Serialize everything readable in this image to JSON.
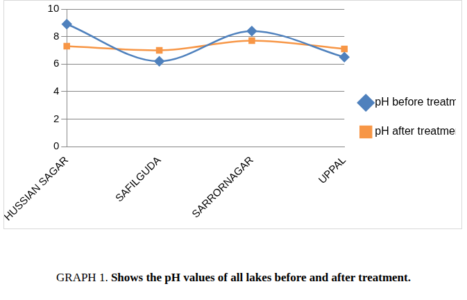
{
  "chart_data": {
    "type": "line",
    "title": "GRAPH 1. Shows the pH values of all lakes before and after treatment.",
    "categories": [
      "HUSSIAN SAGAR",
      "SAFILGUDA",
      "SARRORNAGAR",
      "UPPAL"
    ],
    "series": [
      {
        "name": "pH before treatment",
        "color": "#4f81bd",
        "marker": "diamond",
        "values": [
          8.9,
          6.2,
          8.4,
          6.5
        ]
      },
      {
        "name": "pH after treatment",
        "color": "#f79646",
        "marker": "square",
        "values": [
          7.3,
          7.0,
          7.7,
          7.1
        ]
      }
    ],
    "ylim": [
      0,
      10
    ],
    "yticks": [
      0,
      2,
      4,
      6,
      8,
      10
    ],
    "grid": true,
    "legend": "right"
  }
}
